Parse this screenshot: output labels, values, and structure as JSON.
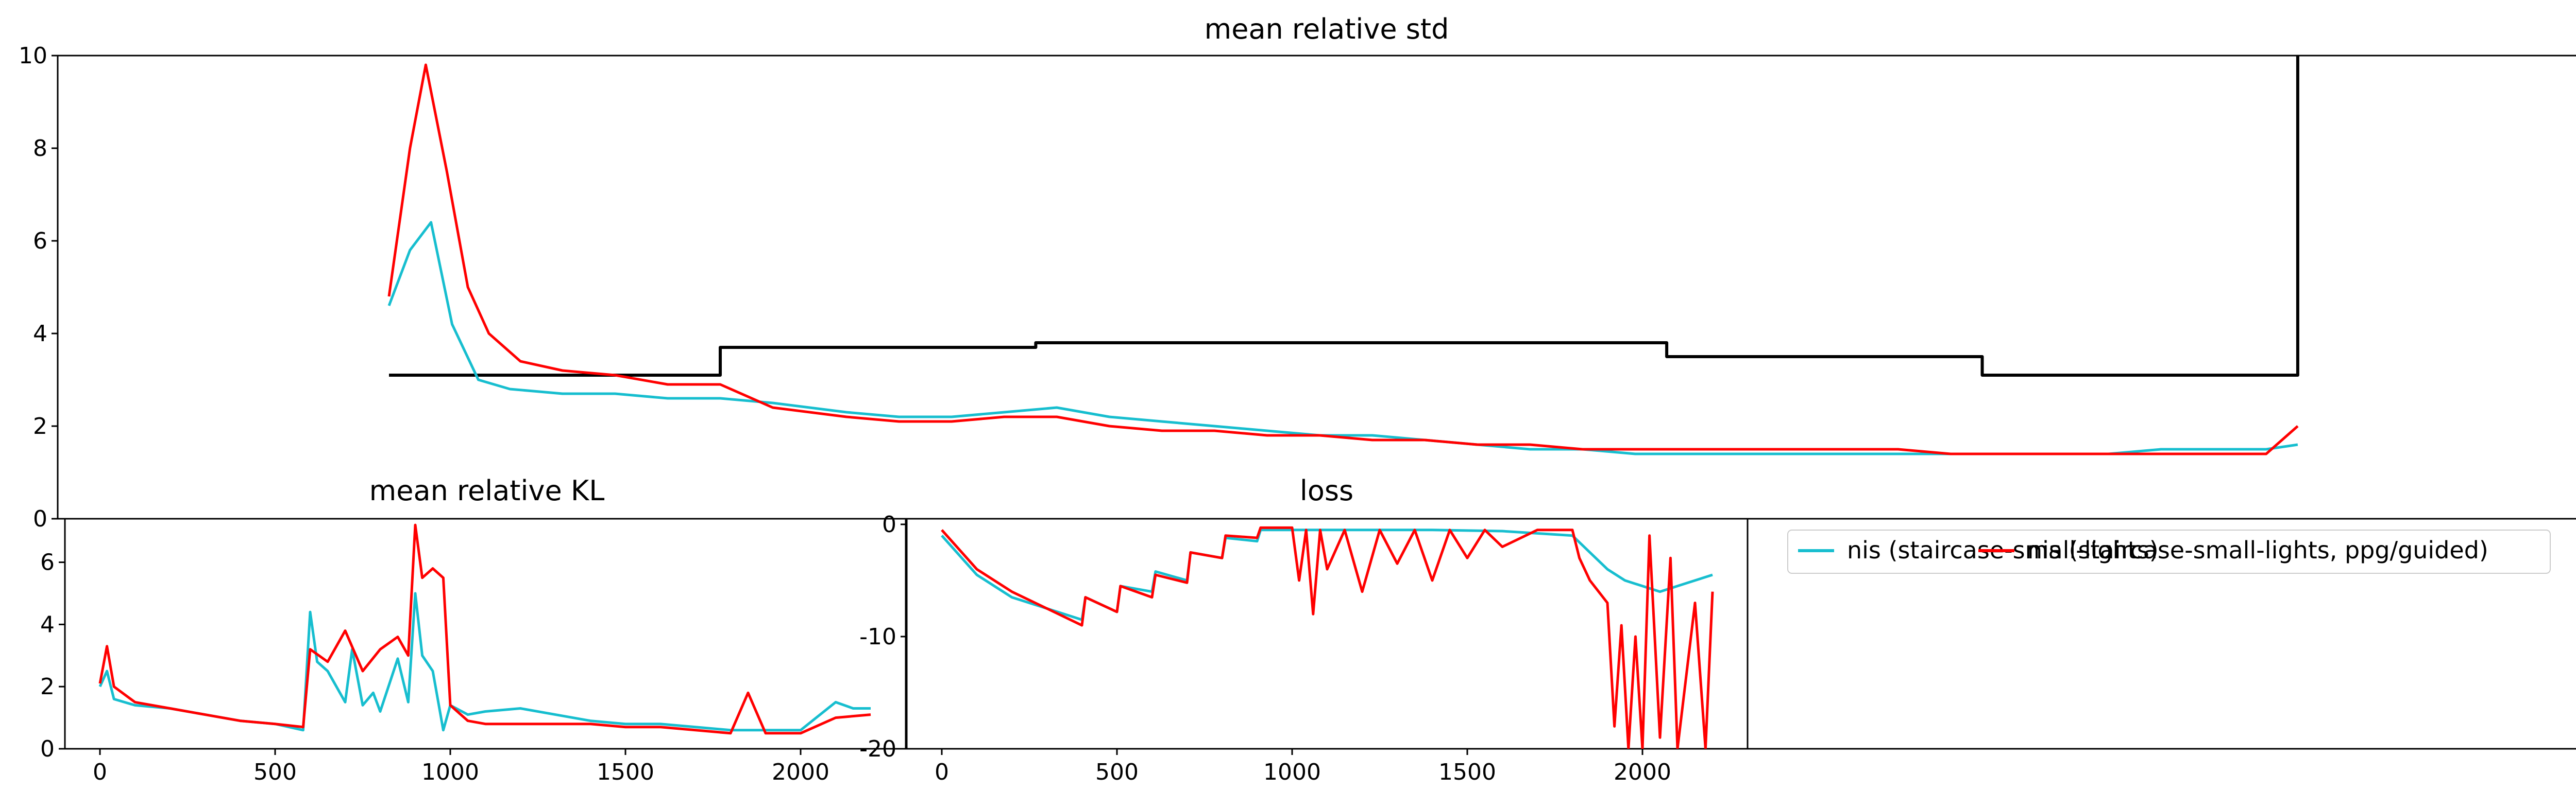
{
  "colors": {
    "nis": "#17becf",
    "ppg": "#ff0000",
    "ref": "#000000"
  },
  "chart_data": [
    {
      "type": "line",
      "title": "mean relative std",
      "xlabel": "",
      "ylabel": "",
      "xlim": [
        -100,
        2300
      ],
      "ylim": [
        0,
        10
      ],
      "yticks": [
        0,
        2,
        4,
        6,
        8,
        10
      ],
      "grid": false,
      "note_x": "x axis shares the index of the lower-left panels' range 0-2200 scaled to the full width",
      "series": [
        {
          "key": "ref",
          "points": [
            [
              215,
              3.1
            ],
            [
              530,
              3.1
            ],
            [
              530,
              3.7
            ],
            [
              830,
              3.7
            ],
            [
              830,
              3.8
            ],
            [
              1130,
              3.8
            ],
            [
              1130,
              3.8
            ],
            [
              1430,
              3.8
            ],
            [
              1430,
              3.5
            ],
            [
              1730,
              3.5
            ],
            [
              1730,
              3.1
            ],
            [
              2030,
              3.1
            ],
            [
              2030,
              10
            ]
          ]
        },
        {
          "key": "nis",
          "points": [
            [
              215,
              4.6
            ],
            [
              235,
              5.8
            ],
            [
              255,
              6.4
            ],
            [
              275,
              4.2
            ],
            [
              300,
              3.0
            ],
            [
              330,
              2.8
            ],
            [
              380,
              2.7
            ],
            [
              430,
              2.7
            ],
            [
              480,
              2.6
            ],
            [
              530,
              2.6
            ],
            [
              580,
              2.5
            ],
            [
              650,
              2.3
            ],
            [
              700,
              2.2
            ],
            [
              750,
              2.2
            ],
            [
              800,
              2.3
            ],
            [
              850,
              2.4
            ],
            [
              900,
              2.2
            ],
            [
              950,
              2.1
            ],
            [
              1000,
              2.0
            ],
            [
              1050,
              1.9
            ],
            [
              1100,
              1.8
            ],
            [
              1150,
              1.8
            ],
            [
              1200,
              1.7
            ],
            [
              1250,
              1.6
            ],
            [
              1300,
              1.5
            ],
            [
              1350,
              1.5
            ],
            [
              1400,
              1.4
            ],
            [
              1450,
              1.4
            ],
            [
              1500,
              1.4
            ],
            [
              1550,
              1.4
            ],
            [
              1600,
              1.4
            ],
            [
              1650,
              1.4
            ],
            [
              1700,
              1.4
            ],
            [
              1750,
              1.4
            ],
            [
              1800,
              1.4
            ],
            [
              1850,
              1.4
            ],
            [
              1900,
              1.5
            ],
            [
              1950,
              1.5
            ],
            [
              2000,
              1.5
            ],
            [
              2030,
              1.6
            ]
          ]
        },
        {
          "key": "ppg",
          "points": [
            [
              215,
              4.8
            ],
            [
              235,
              8.0
            ],
            [
              250,
              9.8
            ],
            [
              270,
              7.5
            ],
            [
              290,
              5.0
            ],
            [
              310,
              4.0
            ],
            [
              340,
              3.4
            ],
            [
              380,
              3.2
            ],
            [
              430,
              3.1
            ],
            [
              480,
              2.9
            ],
            [
              530,
              2.9
            ],
            [
              580,
              2.4
            ],
            [
              650,
              2.2
            ],
            [
              700,
              2.1
            ],
            [
              750,
              2.1
            ],
            [
              800,
              2.2
            ],
            [
              850,
              2.2
            ],
            [
              900,
              2.0
            ],
            [
              950,
              1.9
            ],
            [
              1000,
              1.9
            ],
            [
              1050,
              1.8
            ],
            [
              1100,
              1.8
            ],
            [
              1150,
              1.7
            ],
            [
              1200,
              1.7
            ],
            [
              1250,
              1.6
            ],
            [
              1300,
              1.6
            ],
            [
              1350,
              1.5
            ],
            [
              1400,
              1.5
            ],
            [
              1450,
              1.5
            ],
            [
              1500,
              1.5
            ],
            [
              1550,
              1.5
            ],
            [
              1600,
              1.5
            ],
            [
              1650,
              1.5
            ],
            [
              1700,
              1.4
            ],
            [
              1750,
              1.4
            ],
            [
              1800,
              1.4
            ],
            [
              1850,
              1.4
            ],
            [
              1900,
              1.4
            ],
            [
              1950,
              1.4
            ],
            [
              2000,
              1.4
            ],
            [
              2030,
              2.0
            ]
          ]
        }
      ]
    },
    {
      "type": "line",
      "title": "mean relative KL",
      "xlabel": "",
      "ylabel": "",
      "xlim": [
        -100,
        2300
      ],
      "ylim": [
        0,
        7.4
      ],
      "xticks": [
        0,
        500,
        1000,
        1500,
        2000
      ],
      "yticks": [
        0,
        2,
        4,
        6
      ],
      "grid": false,
      "series": [
        {
          "key": "nis",
          "points": [
            [
              0,
              2.0
            ],
            [
              20,
              2.5
            ],
            [
              40,
              1.6
            ],
            [
              100,
              1.4
            ],
            [
              200,
              1.3
            ],
            [
              300,
              1.1
            ],
            [
              400,
              0.9
            ],
            [
              500,
              0.8
            ],
            [
              580,
              0.6
            ],
            [
              600,
              4.4
            ],
            [
              620,
              2.8
            ],
            [
              650,
              2.5
            ],
            [
              700,
              1.5
            ],
            [
              720,
              3.2
            ],
            [
              750,
              1.4
            ],
            [
              780,
              1.8
            ],
            [
              800,
              1.2
            ],
            [
              850,
              2.9
            ],
            [
              880,
              1.5
            ],
            [
              900,
              5.0
            ],
            [
              920,
              3.0
            ],
            [
              950,
              2.5
            ],
            [
              980,
              0.6
            ],
            [
              1000,
              1.4
            ],
            [
              1050,
              1.1
            ],
            [
              1100,
              1.2
            ],
            [
              1200,
              1.3
            ],
            [
              1300,
              1.1
            ],
            [
              1400,
              0.9
            ],
            [
              1500,
              0.8
            ],
            [
              1600,
              0.8
            ],
            [
              1700,
              0.7
            ],
            [
              1800,
              0.6
            ],
            [
              1900,
              0.6
            ],
            [
              2000,
              0.6
            ],
            [
              2100,
              1.5
            ],
            [
              2150,
              1.3
            ],
            [
              2200,
              1.3
            ]
          ]
        },
        {
          "key": "ppg",
          "points": [
            [
              0,
              2.1
            ],
            [
              20,
              3.3
            ],
            [
              40,
              2.0
            ],
            [
              100,
              1.5
            ],
            [
              200,
              1.3
            ],
            [
              300,
              1.1
            ],
            [
              400,
              0.9
            ],
            [
              500,
              0.8
            ],
            [
              580,
              0.7
            ],
            [
              600,
              3.2
            ],
            [
              650,
              2.8
            ],
            [
              700,
              3.8
            ],
            [
              750,
              2.5
            ],
            [
              800,
              3.2
            ],
            [
              850,
              3.6
            ],
            [
              880,
              3.0
            ],
            [
              900,
              7.2
            ],
            [
              920,
              5.5
            ],
            [
              950,
              5.8
            ],
            [
              980,
              5.5
            ],
            [
              1000,
              1.4
            ],
            [
              1050,
              0.9
            ],
            [
              1100,
              0.8
            ],
            [
              1200,
              0.8
            ],
            [
              1300,
              0.8
            ],
            [
              1400,
              0.8
            ],
            [
              1500,
              0.7
            ],
            [
              1600,
              0.7
            ],
            [
              1700,
              0.6
            ],
            [
              1800,
              0.5
            ],
            [
              1850,
              1.8
            ],
            [
              1900,
              0.5
            ],
            [
              2000,
              0.5
            ],
            [
              2100,
              1.0
            ],
            [
              2200,
              1.1
            ]
          ]
        }
      ]
    },
    {
      "type": "line",
      "title": "loss",
      "xlabel": "",
      "ylabel": "",
      "xlim": [
        -100,
        2300
      ],
      "ylim": [
        -20,
        0.5
      ],
      "xticks": [
        0,
        500,
        1000,
        1500,
        2000
      ],
      "yticks": [
        0,
        -10,
        -20
      ],
      "grid": false,
      "series": [
        {
          "key": "nis",
          "points": [
            [
              0,
              -1.0
            ],
            [
              100,
              -4.5
            ],
            [
              200,
              -6.5
            ],
            [
              300,
              -7.5
            ],
            [
              400,
              -8.5
            ],
            [
              410,
              -6.5
            ],
            [
              500,
              -7.8
            ],
            [
              510,
              -5.5
            ],
            [
              600,
              -6.0
            ],
            [
              610,
              -4.2
            ],
            [
              700,
              -5.0
            ],
            [
              710,
              -2.5
            ],
            [
              800,
              -3.0
            ],
            [
              810,
              -1.2
            ],
            [
              900,
              -1.5
            ],
            [
              910,
              -0.5
            ],
            [
              1000,
              -0.5
            ],
            [
              1200,
              -0.5
            ],
            [
              1400,
              -0.5
            ],
            [
              1600,
              -0.6
            ],
            [
              1800,
              -1.0
            ],
            [
              1850,
              -2.5
            ],
            [
              1900,
              -4.0
            ],
            [
              1950,
              -5.0
            ],
            [
              2000,
              -5.5
            ],
            [
              2050,
              -6.0
            ],
            [
              2100,
              -5.5
            ],
            [
              2150,
              -5.0
            ],
            [
              2200,
              -4.5
            ]
          ]
        },
        {
          "key": "ppg",
          "points": [
            [
              0,
              -0.5
            ],
            [
              100,
              -4.0
            ],
            [
              200,
              -6.0
            ],
            [
              300,
              -7.5
            ],
            [
              400,
              -9.0
            ],
            [
              410,
              -6.5
            ],
            [
              500,
              -7.8
            ],
            [
              510,
              -5.5
            ],
            [
              600,
              -6.5
            ],
            [
              610,
              -4.5
            ],
            [
              700,
              -5.2
            ],
            [
              710,
              -2.5
            ],
            [
              800,
              -3.0
            ],
            [
              810,
              -1.0
            ],
            [
              900,
              -1.2
            ],
            [
              910,
              -0.3
            ],
            [
              1000,
              -0.3
            ],
            [
              1020,
              -5.0
            ],
            [
              1040,
              -0.5
            ],
            [
              1060,
              -8.0
            ],
            [
              1080,
              -0.5
            ],
            [
              1100,
              -4.0
            ],
            [
              1150,
              -0.5
            ],
            [
              1200,
              -6.0
            ],
            [
              1250,
              -0.5
            ],
            [
              1300,
              -3.5
            ],
            [
              1350,
              -0.5
            ],
            [
              1400,
              -5.0
            ],
            [
              1450,
              -0.5
            ],
            [
              1500,
              -3.0
            ],
            [
              1550,
              -0.5
            ],
            [
              1600,
              -2.0
            ],
            [
              1700,
              -0.5
            ],
            [
              1800,
              -0.5
            ],
            [
              1820,
              -3.0
            ],
            [
              1850,
              -5.0
            ],
            [
              1900,
              -7.0
            ],
            [
              1920,
              -18.0
            ],
            [
              1940,
              -9.0
            ],
            [
              1960,
              -20.0
            ],
            [
              1980,
              -10.0
            ],
            [
              2000,
              -20.0
            ],
            [
              2020,
              -1.0
            ],
            [
              2050,
              -19.0
            ],
            [
              2080,
              -3.0
            ],
            [
              2100,
              -20.0
            ],
            [
              2150,
              -7.0
            ],
            [
              2180,
              -20.0
            ],
            [
              2200,
              -6.0
            ]
          ]
        }
      ]
    }
  ],
  "legend": [
    {
      "key": "nis",
      "label": "nis (staircase-small-lights)"
    },
    {
      "key": "ppg",
      "label": "nis (staircase-small-lights, ppg/guided)"
    }
  ]
}
